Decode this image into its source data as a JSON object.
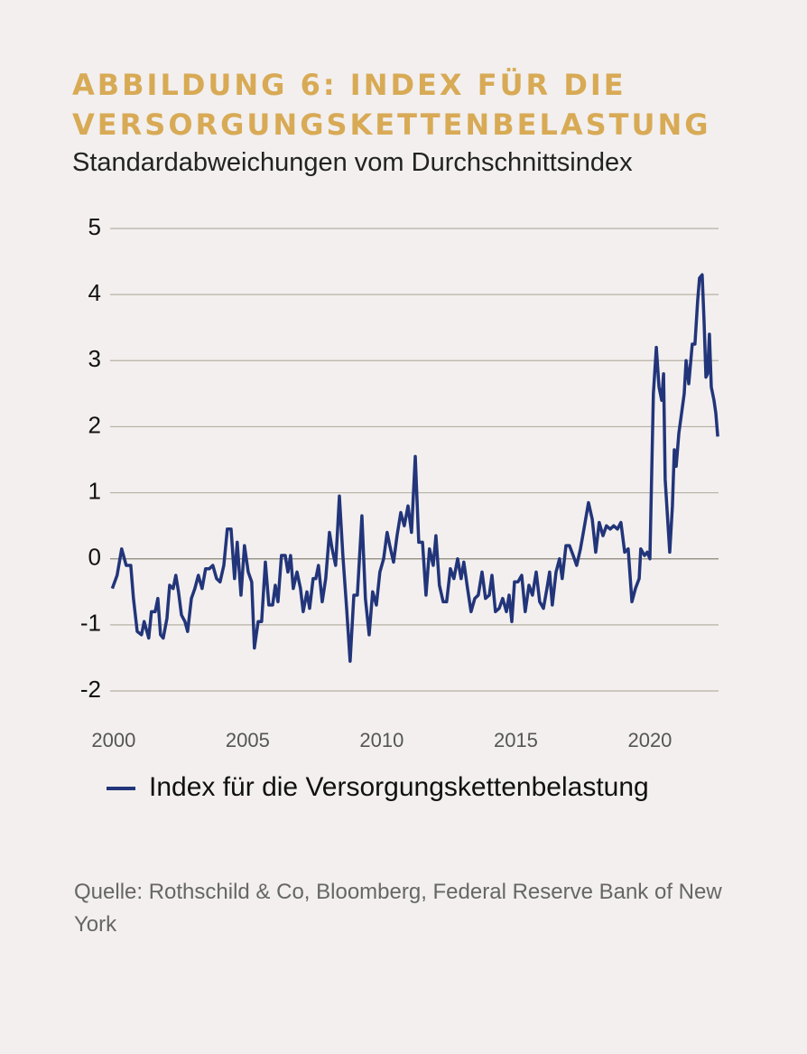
{
  "chart_data": {
    "type": "line",
    "title": "ABBILDUNG 6: INDEX FÜR DIE VERSORGUNGSKETTENBELASTUNG",
    "subtitle": "Standardabweichungen vom Durchschnittsindex",
    "source": "Quelle: Rothschild & Co, Bloomberg, Federal Reserve Bank of New York",
    "x": [
      1999.95,
      2000.13,
      2000.3,
      2000.47,
      2000.64,
      2000.74,
      2000.88,
      2001.04,
      2001.14,
      2001.31,
      2001.41,
      2001.55,
      2001.65,
      2001.75,
      2001.85,
      2001.99,
      2002.09,
      2002.22,
      2002.32,
      2002.42,
      2002.53,
      2002.66,
      2002.76,
      2002.9,
      2003.03,
      2003.16,
      2003.3,
      2003.43,
      2003.57,
      2003.7,
      2003.84,
      2003.97,
      2004.11,
      2004.24,
      2004.38,
      2004.51,
      2004.61,
      2004.75,
      2004.88,
      2005.02,
      2005.15,
      2005.25,
      2005.39,
      2005.52,
      2005.66,
      2005.79,
      2005.93,
      2006.03,
      2006.13,
      2006.26,
      2006.4,
      2006.5,
      2006.6,
      2006.7,
      2006.84,
      2006.97,
      2007.07,
      2007.21,
      2007.31,
      2007.44,
      2007.54,
      2007.64,
      2007.78,
      2007.91,
      2008.05,
      2008.15,
      2008.28,
      2008.42,
      2008.55,
      2008.69,
      2008.82,
      2008.96,
      2009.09,
      2009.26,
      2009.39,
      2009.53,
      2009.66,
      2009.8,
      2009.93,
      2010.07,
      2010.2,
      2010.3,
      2010.44,
      2010.57,
      2010.71,
      2010.84,
      2010.98,
      2011.11,
      2011.25,
      2011.38,
      2011.52,
      2011.65,
      2011.78,
      2011.92,
      2012.02,
      2012.15,
      2012.29,
      2012.42,
      2012.56,
      2012.69,
      2012.83,
      2012.96,
      2013.06,
      2013.2,
      2013.33,
      2013.47,
      2013.6,
      2013.74,
      2013.87,
      2014.01,
      2014.11,
      2014.24,
      2014.38,
      2014.51,
      2014.65,
      2014.75,
      2014.85,
      2014.95,
      2015.08,
      2015.22,
      2015.35,
      2015.49,
      2015.62,
      2015.76,
      2015.89,
      2016.03,
      2016.16,
      2016.26,
      2016.36,
      2016.5,
      2016.63,
      2016.73,
      2016.87,
      2017.0,
      2017.14,
      2017.27,
      2017.41,
      2017.54,
      2017.71,
      2017.85,
      2017.98,
      2018.11,
      2018.25,
      2018.38,
      2018.52,
      2018.65,
      2018.79,
      2018.92,
      2019.06,
      2019.19,
      2019.33,
      2019.46,
      2019.6,
      2019.66,
      2019.8,
      2019.9,
      2020.0,
      2020.13,
      2020.24,
      2020.34,
      2020.44,
      2020.51,
      2020.57,
      2020.67,
      2020.74,
      2020.84,
      2020.91,
      2020.98,
      2021.08,
      2021.18,
      2021.28,
      2021.35,
      2021.45,
      2021.58,
      2021.68,
      2021.78,
      2021.85,
      2021.95,
      2022.02,
      2022.09,
      2022.15,
      2022.22,
      2022.29,
      2022.39,
      2022.46,
      2022.53
    ],
    "series": [
      {
        "name": "Index für die Versorgungskettenbelastung",
        "color": "#22357a",
        "values": [
          -0.45,
          -0.25,
          0.15,
          -0.1,
          -0.1,
          -0.6,
          -1.1,
          -1.15,
          -0.95,
          -1.2,
          -0.8,
          -0.8,
          -0.6,
          -1.15,
          -1.2,
          -0.9,
          -0.4,
          -0.45,
          -0.25,
          -0.5,
          -0.85,
          -0.95,
          -1.1,
          -0.6,
          -0.45,
          -0.25,
          -0.45,
          -0.15,
          -0.15,
          -0.1,
          -0.3,
          -0.35,
          -0.1,
          0.45,
          0.45,
          -0.3,
          0.25,
          -0.55,
          0.2,
          -0.2,
          -0.35,
          -1.35,
          -0.95,
          -0.95,
          -0.05,
          -0.7,
          -0.7,
          -0.4,
          -0.65,
          0.05,
          0.05,
          -0.2,
          0.05,
          -0.45,
          -0.2,
          -0.45,
          -0.8,
          -0.5,
          -0.75,
          -0.3,
          -0.3,
          -0.1,
          -0.65,
          -0.3,
          0.4,
          0.15,
          -0.1,
          0.95,
          0.05,
          -0.75,
          -1.55,
          -0.55,
          -0.55,
          0.65,
          -0.6,
          -1.15,
          -0.5,
          -0.7,
          -0.2,
          0.0,
          0.4,
          0.2,
          -0.05,
          0.35,
          0.7,
          0.5,
          0.8,
          0.4,
          1.55,
          0.25,
          0.25,
          -0.55,
          0.15,
          -0.1,
          0.35,
          -0.4,
          -0.65,
          -0.65,
          -0.15,
          -0.3,
          0.0,
          -0.3,
          -0.05,
          -0.45,
          -0.8,
          -0.6,
          -0.55,
          -0.2,
          -0.6,
          -0.55,
          -0.25,
          -0.8,
          -0.75,
          -0.6,
          -0.8,
          -0.55,
          -0.95,
          -0.35,
          -0.35,
          -0.25,
          -0.8,
          -0.4,
          -0.55,
          -0.2,
          -0.65,
          -0.75,
          -0.45,
          -0.2,
          -0.7,
          -0.2,
          0.0,
          -0.3,
          0.2,
          0.2,
          0.05,
          -0.1,
          0.15,
          0.45,
          0.85,
          0.6,
          0.1,
          0.55,
          0.35,
          0.5,
          0.45,
          0.5,
          0.45,
          0.55,
          0.1,
          0.15,
          -0.65,
          -0.45,
          -0.3,
          0.15,
          0.05,
          0.1,
          0.0,
          2.5,
          3.2,
          2.6,
          2.4,
          2.8,
          1.2,
          0.55,
          0.1,
          0.8,
          1.65,
          1.4,
          1.9,
          2.2,
          2.5,
          3.0,
          2.65,
          3.25,
          3.25,
          3.9,
          4.25,
          4.3,
          3.6,
          2.75,
          2.8,
          3.4,
          2.6,
          2.4,
          2.2,
          1.85
        ]
      }
    ],
    "xlim": [
      1999.87,
      2022.56
    ],
    "xticks": [
      2000,
      2005,
      2010,
      2015,
      2020
    ],
    "ylim": [
      -2,
      5
    ],
    "yticks": [
      -2,
      -1,
      0,
      1,
      2,
      3,
      4,
      5
    ],
    "grid": true
  }
}
